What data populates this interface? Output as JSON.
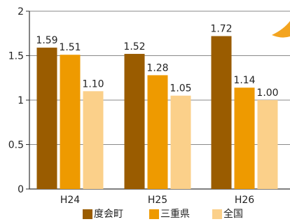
{
  "chart_data": {
    "type": "bar",
    "categories": [
      "H24",
      "H25",
      "H26"
    ],
    "series": [
      {
        "name": "度会町",
        "values": [
          1.59,
          1.52,
          1.72
        ],
        "labels": [
          "1.59",
          "1.52",
          "1.72"
        ],
        "color": "#9a5c00"
      },
      {
        "name": "三重県",
        "values": [
          1.51,
          1.28,
          1.14
        ],
        "labels": [
          "1.51",
          "1.28",
          "1.14"
        ],
        "color": "#ee9a00"
      },
      {
        "name": "全国",
        "values": [
          1.1,
          1.05,
          1.0
        ],
        "labels": [
          "1.10",
          "1.05",
          "1.00"
        ],
        "color": "#fbd08a"
      }
    ],
    "yticks": [
      "0",
      "0.5",
      "1",
      "1.5",
      "2"
    ],
    "ylim": [
      0,
      2
    ],
    "grid": true,
    "legend_position": "bottom"
  },
  "colors": {
    "grid": "#8a8a8a",
    "axis": "#333333",
    "decoration": "#f3a41f"
  }
}
